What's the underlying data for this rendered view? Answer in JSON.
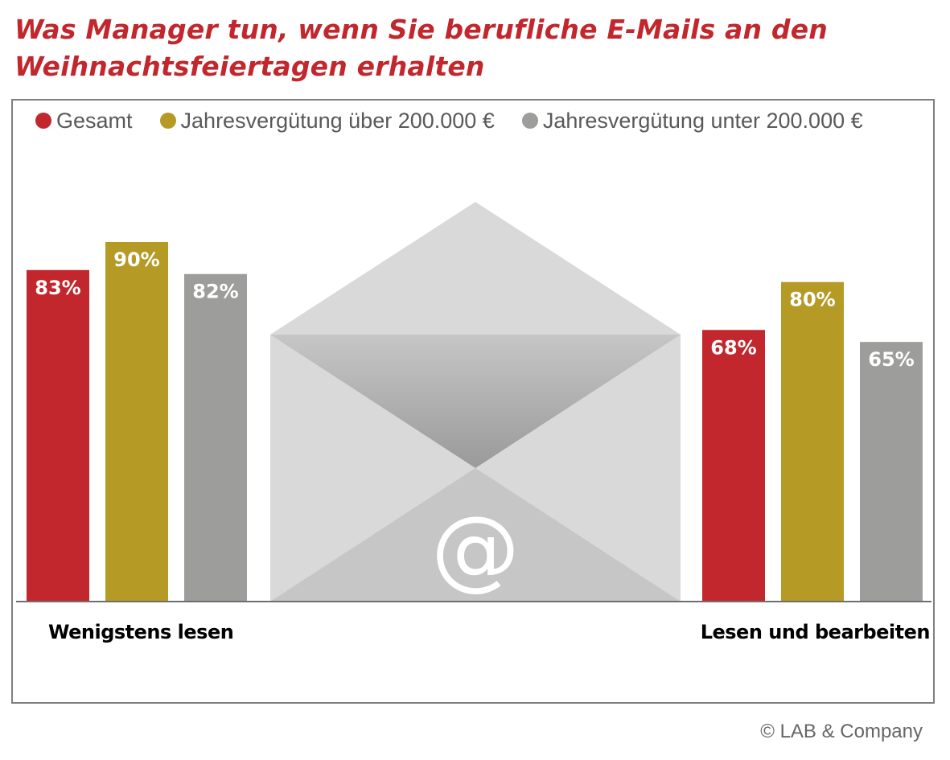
{
  "title": "Was Manager tun, wenn Sie berufliche E-Mails an den Weihnachtsfeiertagen erhalten",
  "copyright": "© LAB & Company",
  "envelope": {
    "icon": "envelope-icon",
    "symbol": "@"
  },
  "chart_data": {
    "type": "bar",
    "title": "Was Manager tun, wenn Sie berufliche E-Mails an den Weihnachtsfeiertagen erhalten",
    "xlabel": "",
    "ylabel": "",
    "ylim": [
      0,
      100
    ],
    "grid": false,
    "legend_position": "top",
    "categories": [
      "Wenigstens lesen",
      "Lesen und bearbeiten"
    ],
    "series": [
      {
        "name": "Gesamt",
        "color": "#c1272d",
        "values": [
          83,
          68
        ],
        "labels": [
          "83%",
          "68%"
        ]
      },
      {
        "name": "Jahresvergütung über 200.000 €",
        "color": "#b59a26",
        "values": [
          90,
          80
        ],
        "labels": [
          "90%",
          "80%"
        ]
      },
      {
        "name": "Jahresvergütung unter 200.000 €",
        "color": "#9d9d9c",
        "values": [
          82,
          65
        ],
        "labels": [
          "82%",
          "65%"
        ]
      }
    ]
  }
}
